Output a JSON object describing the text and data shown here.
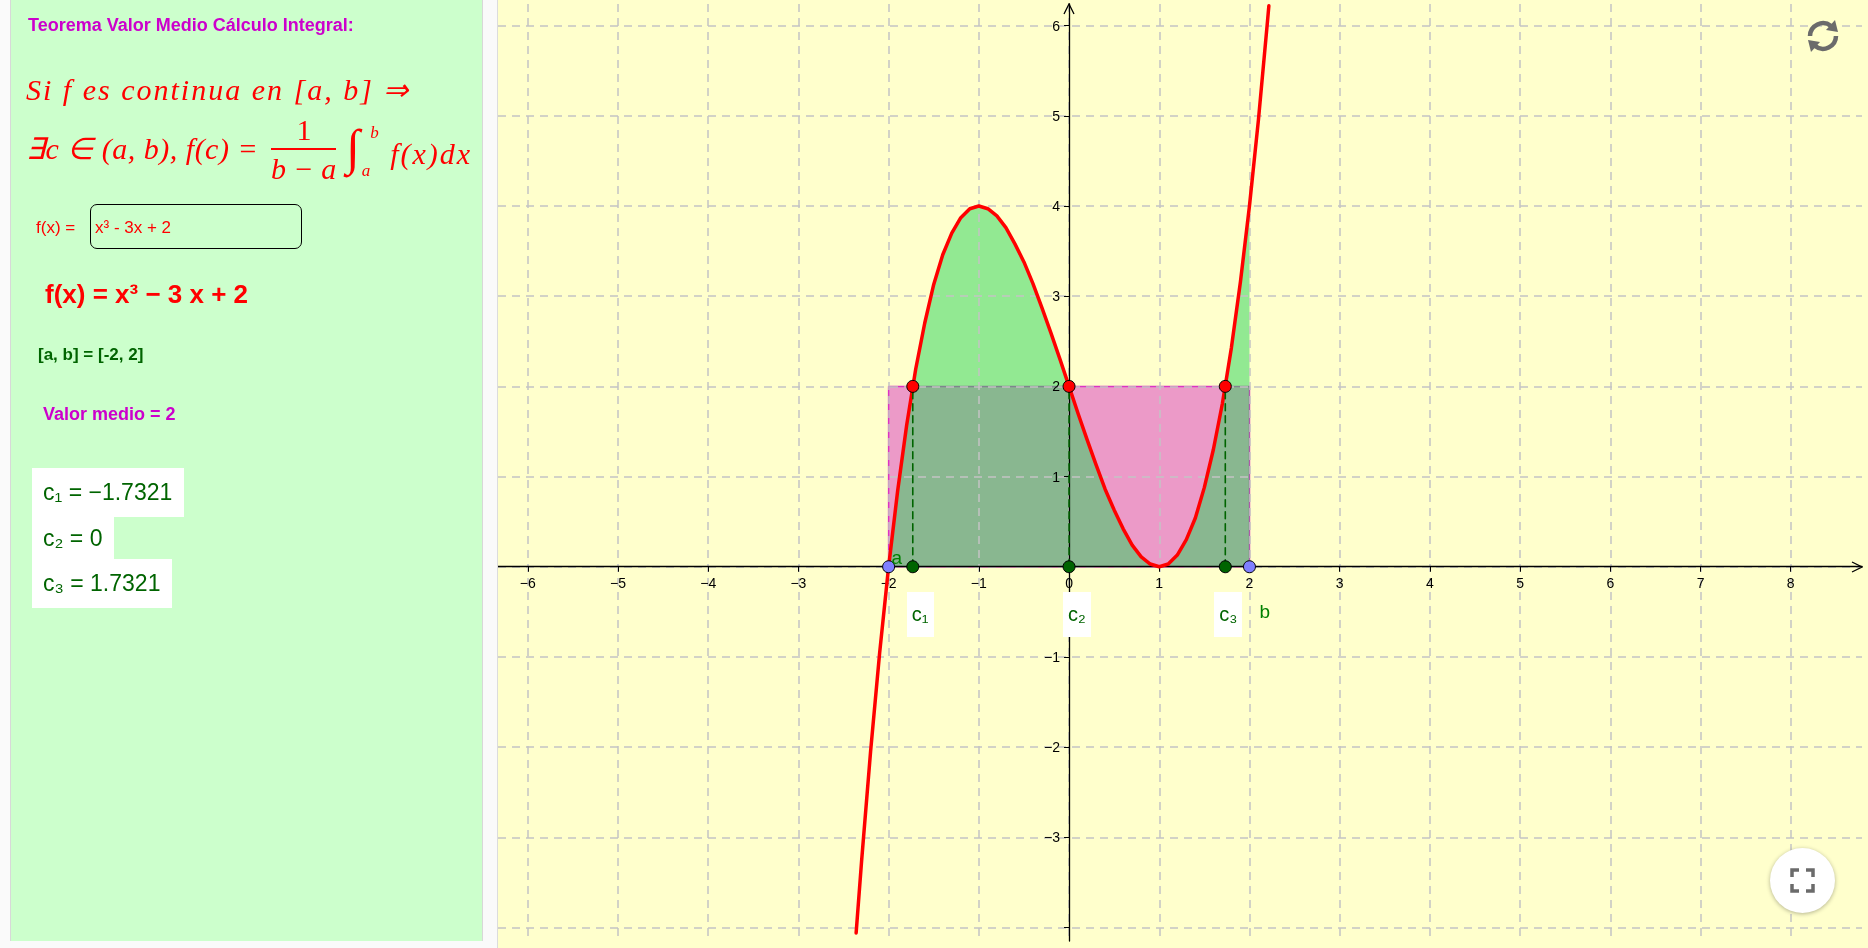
{
  "chart_data": {
    "type": "line",
    "title": "Teorema Valor Medio Cálculo Integral:",
    "xlim": [
      -6.33,
      8.79
    ],
    "ylim": [
      -4.15,
      6.24
    ],
    "xticks": [
      {
        "value": -6,
        "label": "−6"
      },
      {
        "value": -5,
        "label": "−5"
      },
      {
        "value": -4,
        "label": "−4"
      },
      {
        "value": -3,
        "label": "−3"
      },
      {
        "value": -2,
        "label": "−2"
      },
      {
        "value": -1,
        "label": "−1"
      },
      0,
      1,
      2,
      3,
      4,
      5,
      6,
      7,
      8
    ],
    "yticks": [
      {
        "value": -4,
        "label": null
      },
      {
        "value": -3,
        "label": "−3"
      },
      {
        "value": -2,
        "label": "−2"
      },
      {
        "value": -1,
        "label": "−1"
      },
      {
        "value": 0,
        "label": null
      },
      1,
      2,
      3,
      4,
      5,
      6
    ],
    "grid": true,
    "marker": "none",
    "series": [
      {
        "type": "area",
        "color": "#d935c4",
        "x": [
          -2,
          -2,
          2,
          2,
          -2
        ],
        "values": [
          0,
          2,
          2,
          0,
          0
        ]
      },
      {
        "type": "area",
        "color": "#25d358",
        "x": [
          -2,
          -1.9,
          -1.8,
          -1.7,
          -1.6,
          -1.5,
          -1.4,
          -1.3,
          -1.2,
          -1.1,
          -1,
          -0.9,
          -0.8,
          -0.7,
          -0.6,
          -0.5,
          -0.4,
          -0.3,
          -0.2,
          -0.1,
          0,
          0.1,
          0.2,
          0.3,
          0.4,
          0.5,
          0.6,
          0.7,
          0.8,
          0.9,
          1,
          1.1,
          1.2,
          1.3,
          1.4,
          1.5,
          1.6,
          1.7,
          1.8,
          1.9,
          2
        ],
        "values": [
          0,
          0.84,
          1.57,
          2.19,
          2.7,
          3.13,
          3.46,
          3.7,
          3.87,
          3.97,
          4,
          3.97,
          3.89,
          3.76,
          3.58,
          3.38,
          3.14,
          2.87,
          2.59,
          2.3,
          2,
          1.7,
          1.41,
          1.13,
          0.86,
          0.63,
          0.42,
          0.24,
          0.11,
          0.03,
          0,
          0.03,
          0.13,
          0.3,
          0.54,
          0.88,
          1.3,
          1.81,
          2.43,
          3.16,
          4
        ]
      },
      {
        "color": "#ff0000",
        "x": [
          -2.36,
          -2.3,
          -2.2,
          -2.1,
          -2,
          -1.9,
          -1.8,
          -1.7,
          -1.6,
          -1.5,
          -1.4,
          -1.3,
          -1.2,
          -1.1,
          -1,
          -0.9,
          -0.8,
          -0.7,
          -0.6,
          -0.5,
          -0.4,
          -0.3,
          -0.2,
          -0.1,
          0,
          0.1,
          0.2,
          0.3,
          0.4,
          0.5,
          0.6,
          0.7,
          0.8,
          0.9,
          1,
          1.1,
          1.2,
          1.3,
          1.4,
          1.5,
          1.6,
          1.7,
          1.8,
          1.9,
          2,
          2.1,
          2.2,
          2.215
        ],
        "values": [
          -4.06,
          -3.27,
          -2.05,
          -0.96,
          0,
          0.84,
          1.57,
          2.19,
          2.7,
          3.13,
          3.46,
          3.7,
          3.87,
          3.97,
          4,
          3.97,
          3.89,
          3.76,
          3.58,
          3.38,
          3.14,
          2.87,
          2.59,
          2.3,
          2,
          1.7,
          1.41,
          1.13,
          0.86,
          0.63,
          0.42,
          0.24,
          0.11,
          0.03,
          0,
          0.03,
          0.13,
          0.3,
          0.54,
          0.88,
          1.3,
          1.81,
          2.43,
          3.16,
          4,
          4.96,
          6.05,
          6.22
        ]
      },
      {
        "color": "#006400",
        "line_style": "dashed",
        "x": [
          -1.7321,
          -1.7321
        ],
        "values": [
          0,
          2
        ]
      },
      {
        "color": "#006400",
        "line_style": "dashed",
        "x": [
          0,
          0
        ],
        "values": [
          0,
          2
        ]
      },
      {
        "color": "#006400",
        "line_style": "dashed",
        "x": [
          1.7321,
          1.7321
        ],
        "values": [
          0,
          2
        ]
      },
      {
        "type": "scatter",
        "marker": "circle",
        "color": "#ff0000",
        "x": [
          -1.7321,
          0,
          1.7321
        ],
        "values": [
          2,
          2,
          2
        ]
      },
      {
        "type": "scatter",
        "marker": "circle",
        "color": "#006400",
        "x": [
          -1.7321,
          0,
          1.7321
        ],
        "values": [
          0,
          0,
          0
        ]
      },
      {
        "type": "scatter",
        "marker": "circle",
        "color": "#7f7fff",
        "x": [
          -2,
          2
        ],
        "values": [
          0,
          0
        ]
      }
    ],
    "annotations": [
      "Si f es continua en [a, b] ⇒",
      "∃c ∈ (a, b), f(c) =",
      "1",
      "b − a",
      "∫$_{a}$$^{b}$ f(x)dx",
      "f(x) =",
      "x³ - 3x + 2",
      "f(x) = x³ − 3 x + 2",
      "[a, b] = [-2, 2]",
      "Valor medio = 2",
      "c₁ = −1.7321",
      "c₂ = 0",
      "c₃ = 1.7321",
      {
        "text": "a",
        "x": -2,
        "y": 0
      },
      {
        "text": "b",
        "x": 2,
        "y": 0
      },
      {
        "text": "c₁",
        "x": -1.7321,
        "y": 0
      },
      {
        "text": "c₂",
        "x": 0,
        "y": 0
      },
      {
        "text": "c₃",
        "x": 1.7321,
        "y": 0
      }
    ]
  }
}
